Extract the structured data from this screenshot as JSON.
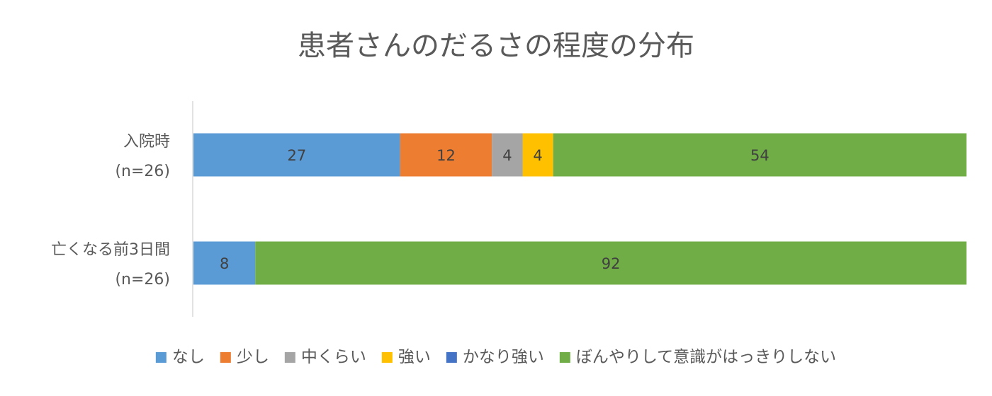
{
  "chart_data": {
    "type": "bar",
    "orientation": "horizontal",
    "stacked": "100%",
    "title": "患者さんのだるさの程度の分布",
    "categories": [
      [
        "入院時",
        "(n=26)"
      ],
      [
        "亡くなる前3日間",
        "(n=26)"
      ]
    ],
    "series": [
      {
        "name": "なし",
        "color": "#5B9BD5",
        "values": [
          27,
          8
        ]
      },
      {
        "name": "少し",
        "color": "#ED7D31",
        "values": [
          12,
          null
        ]
      },
      {
        "name": "中くらい",
        "color": "#A5A5A5",
        "values": [
          4,
          null
        ]
      },
      {
        "name": "強い",
        "color": "#FFC000",
        "values": [
          4,
          null
        ]
      },
      {
        "name": "かなり強い",
        "color": "#4472C4",
        "values": [
          null,
          null
        ]
      },
      {
        "name": "ぼんやりして意識がはっきりしない",
        "color": "#70AD47",
        "values": [
          54,
          92
        ]
      }
    ],
    "legend": "bottom",
    "grid": false,
    "xlim": [
      0,
      100
    ]
  }
}
